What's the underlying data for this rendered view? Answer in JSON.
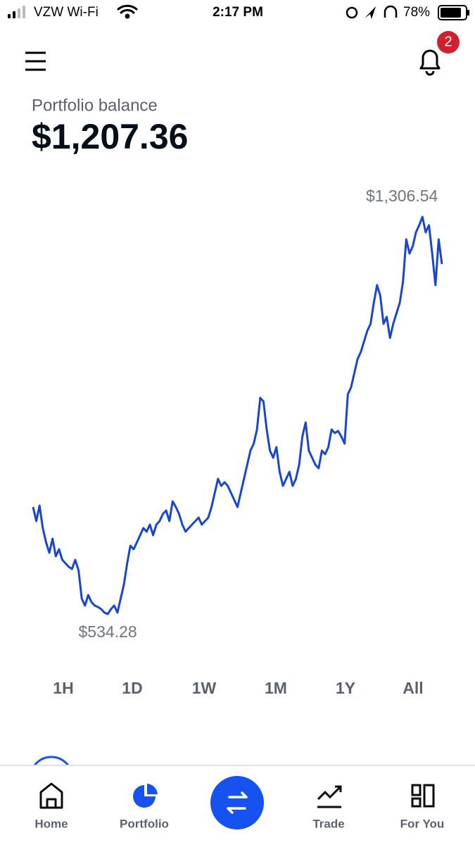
{
  "status_bar": {
    "carrier": "VZW Wi-Fi",
    "time": "2:17 PM",
    "battery": "78%"
  },
  "header": {
    "notification_count": 2
  },
  "balance": {
    "label": "Portfolio balance",
    "amount": "$1,207.36"
  },
  "chart_data": {
    "type": "line",
    "color": "#1a47c8",
    "values": [
      742.4,
      715.0,
      745.2,
      701.4,
      674.0,
      653.4,
      680.8,
      646.6,
      660.3,
      639.7,
      632.9,
      626.0,
      621.9,
      639.7,
      619.2,
      564.4,
      550.7,
      571.3,
      557.6,
      550.7,
      548.0,
      543.9,
      537.0,
      534.28,
      543.9,
      550.7,
      537.0,
      564.4,
      591.8,
      632.9,
      667.1,
      660.3,
      674.0,
      687.7,
      701.4,
      694.5,
      708.2,
      687.7,
      708.2,
      715.0,
      728.7,
      735.6,
      715.0,
      753.4,
      742.4,
      728.7,
      708.2,
      694.5,
      701.4,
      708.2,
      715.0,
      721.9,
      708.2,
      715.0,
      721.9,
      742.4,
      769.8,
      797.2,
      783.5,
      790.4,
      783.5,
      769.8,
      756.1,
      742.4,
      769.8,
      797.2,
      824.6,
      852.0,
      865.7,
      893.1,
      954.7,
      947.8,
      893.1,
      852.0,
      838.3,
      858.8,
      810.9,
      783.5,
      797.2,
      810.9,
      783.5,
      797.2,
      824.6,
      879.4,
      906.7,
      852.0,
      838.3,
      824.6,
      817.7,
      852.0,
      845.1,
      858.8,
      893.1,
      886.2,
      890.3,
      879.4,
      865.7,
      961.5,
      975.2,
      1002.6,
      1030.0,
      1043.7,
      1064.2,
      1084.8,
      1098.5,
      1139.5,
      1173.8,
      1153.2,
      1098.5,
      1112.1,
      1071.1,
      1098.5,
      1119.0,
      1139.5,
      1180.6,
      1262.8,
      1235.4,
      1249.1,
      1276.5,
      1290.2,
      1306.54,
      1276.5,
      1290.2,
      1235.4,
      1173.8,
      1262.8,
      1214.8
    ],
    "high_label": "$1,306.54",
    "low_label": "$534.28"
  },
  "ranges": {
    "options": [
      "1H",
      "1D",
      "1W",
      "1M",
      "1Y",
      "All"
    ],
    "selected": "1W"
  },
  "nav": {
    "items": [
      "Home",
      "Portfolio",
      "Trade",
      "For You"
    ],
    "active": "Portfolio"
  }
}
